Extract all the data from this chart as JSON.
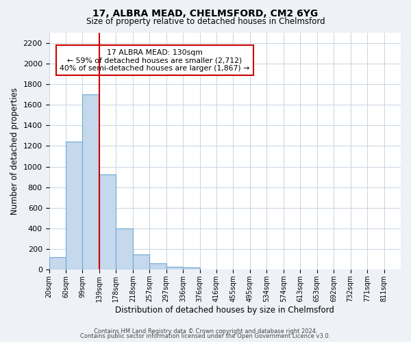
{
  "title1": "17, ALBRA MEAD, CHELMSFORD, CM2 6YG",
  "title2": "Size of property relative to detached houses in Chelmsford",
  "xlabel": "Distribution of detached houses by size in Chelmsford",
  "ylabel": "Number of detached properties",
  "bin_labels": [
    "20sqm",
    "60sqm",
    "99sqm",
    "139sqm",
    "178sqm",
    "218sqm",
    "257sqm",
    "297sqm",
    "336sqm",
    "376sqm",
    "416sqm",
    "455sqm",
    "495sqm",
    "534sqm",
    "574sqm",
    "613sqm",
    "653sqm",
    "692sqm",
    "732sqm",
    "771sqm",
    "811sqm"
  ],
  "bar_values": [
    120,
    1245,
    1700,
    925,
    400,
    150,
    65,
    30,
    20,
    0,
    0,
    0,
    0,
    0,
    0,
    0,
    0,
    0,
    0,
    0,
    0
  ],
  "bar_color": "#c5d8ec",
  "bar_edge_color": "#6aaad4",
  "vline_x": 3.0,
  "vline_color": "#cc0000",
  "annotation_title": "17 ALBRA MEAD: 130sqm",
  "annotation_line1": "← 59% of detached houses are smaller (2,712)",
  "annotation_line2": "40% of semi-detached houses are larger (1,867) →",
  "annotation_box_color": "#ffffff",
  "annotation_box_edge_color": "#cc0000",
  "ylim": [
    0,
    2300
  ],
  "yticks": [
    0,
    200,
    400,
    600,
    800,
    1000,
    1200,
    1400,
    1600,
    1800,
    2000,
    2200
  ],
  "footer1": "Contains HM Land Registry data © Crown copyright and database right 2024.",
  "footer2": "Contains public sector information licensed under the Open Government Licence v3.0.",
  "bg_color": "#eef2f7",
  "plot_bg_color": "#ffffff",
  "grid_color": "#c8d4e0"
}
